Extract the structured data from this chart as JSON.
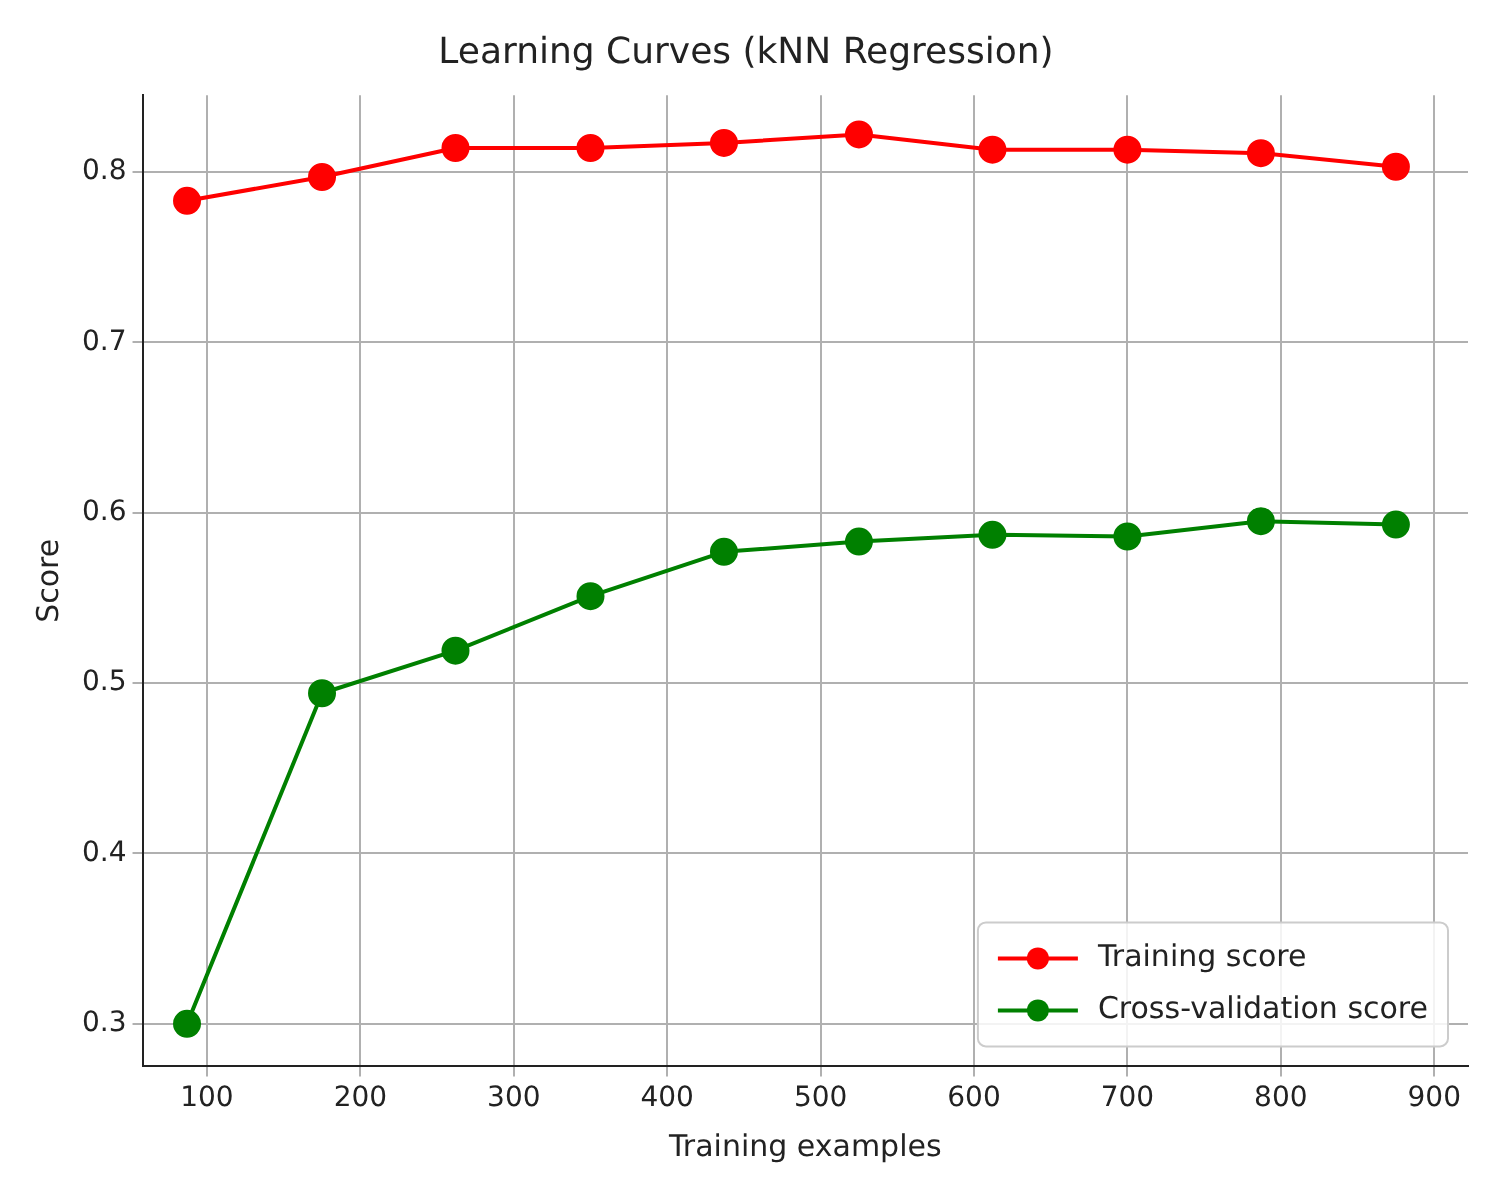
{
  "chart_data": {
    "type": "line",
    "title": "Learning Curves (kNN Regression)",
    "xlabel": "Training examples",
    "ylabel": "Score",
    "x": [
      87,
      175,
      262,
      350,
      437,
      525,
      612,
      700,
      787,
      875
    ],
    "series": [
      {
        "name": "Training score",
        "color": "#ff0000",
        "values": [
          0.783,
          0.797,
          0.814,
          0.814,
          0.817,
          0.822,
          0.813,
          0.813,
          0.811,
          0.803
        ]
      },
      {
        "name": "Cross-validation score",
        "color": "#008000",
        "values": [
          0.3,
          0.494,
          0.519,
          0.551,
          0.577,
          0.583,
          0.587,
          0.586,
          0.595,
          0.593
        ]
      }
    ],
    "xlim": [
      58,
      922
    ],
    "xticks": [
      100,
      200,
      300,
      400,
      500,
      600,
      700,
      800,
      900
    ],
    "ylim": [
      0.275,
      0.845
    ],
    "yticks": [
      0.3,
      0.4,
      0.5,
      0.6,
      0.7,
      0.8
    ],
    "grid": true,
    "legend": "bottom right",
    "marker": "circle",
    "line_style": "solid"
  }
}
